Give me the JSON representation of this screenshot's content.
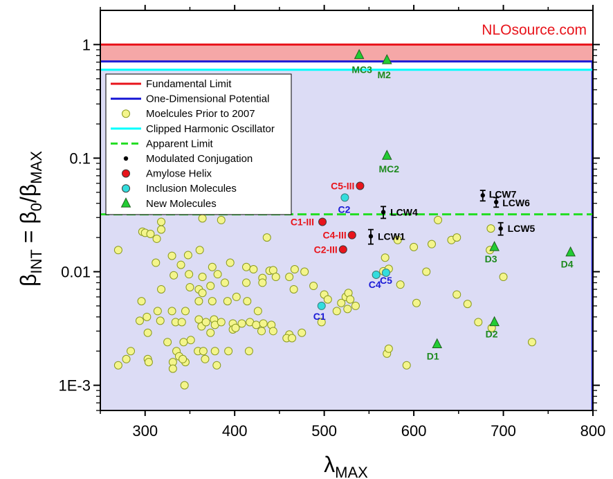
{
  "watermark": "NLOsource.com",
  "chart_data": {
    "type": "scatter",
    "xlabel": "λ",
    "xlabel_sub": "MAX",
    "ylabel_parts": [
      "β",
      "INT",
      " = β",
      "0",
      "/β",
      "MAX"
    ],
    "xlim": [
      250,
      800
    ],
    "ylim": [
      0.0006,
      2
    ],
    "y_scale": "log",
    "x_ticks": [
      300,
      400,
      500,
      600,
      700,
      800
    ],
    "x_tick_labels": [
      "300",
      "400",
      "500",
      "600",
      "700",
      "800"
    ],
    "y_ticks": [
      0.001,
      0.01,
      0.1,
      1
    ],
    "y_tick_labels": [
      "1E-3",
      "0.01",
      "0.1",
      "1"
    ],
    "colors": {
      "fundamental": "#e8141b",
      "fundamental_fill": "#f5a7a7",
      "one_dimensional": "#1a1ad6",
      "clipped": "#00ffff",
      "apparent": "#22dd22",
      "prior": "#f4f58c",
      "prior_edge": "#8a9a1e",
      "amylose": "#e8141b",
      "inclusion": "#33dddd",
      "new": "#22cc33",
      "region_fill": "#dcdcf5",
      "label_red": "#e8141b",
      "label_blue": "#1a1ad6",
      "label_green": "#1e8a1e",
      "label_black": "#000000"
    },
    "bands": {
      "fundamental_limit": 1.0,
      "one_dimensional_limit": 0.71,
      "clipped_harmonic_oscillator": 0.6,
      "apparent_limit": 0.032,
      "region_right_edge_x": 800
    },
    "legend": [
      {
        "label": "Fundamental Limit",
        "marker": "line",
        "color": "#e8141b"
      },
      {
        "label": "One-Dimensional Potential",
        "marker": "line",
        "color": "#1a1ad6"
      },
      {
        "label": "Moelcules Prior to 2007",
        "marker": "circle",
        "color": "#f4f58c"
      },
      {
        "label": "Clipped Harmonic Oscillator",
        "marker": "line",
        "color": "#00ffff"
      },
      {
        "label": "Apparent Limit",
        "marker": "dash",
        "color": "#22dd22"
      },
      {
        "label": "Modulated Conjugation",
        "marker": "dot",
        "color": "#000000"
      },
      {
        "label": "Amylose Helix",
        "marker": "circle",
        "color": "#e8141b"
      },
      {
        "label": "Inclusion Molecules",
        "marker": "circle",
        "color": "#33dddd"
      },
      {
        "label": "New Molecules",
        "marker": "triangle",
        "color": "#22cc33"
      }
    ],
    "series": [
      {
        "name": "Moelcules Prior to 2007",
        "marker": "circle",
        "points": [
          [
            270,
            0.0155
          ],
          [
            297,
            0.0225
          ],
          [
            300,
            0.022
          ],
          [
            306,
            0.0215
          ],
          [
            313,
            0.0195
          ],
          [
            318,
            0.0235
          ],
          [
            318,
            0.0275
          ],
          [
            364,
            0.0295
          ],
          [
            385,
            0.0285
          ],
          [
            436,
            0.02
          ],
          [
            312,
            0.012
          ],
          [
            330,
            0.0138
          ],
          [
            340,
            0.0115
          ],
          [
            348,
            0.014
          ],
          [
            361,
            0.0155
          ],
          [
            332,
            0.0093
          ],
          [
            349,
            0.0095
          ],
          [
            364,
            0.009
          ],
          [
            375,
            0.011
          ],
          [
            381,
            0.0095
          ],
          [
            395,
            0.012
          ],
          [
            413,
            0.011
          ],
          [
            421,
            0.0105
          ],
          [
            431,
            0.0088
          ],
          [
            439,
            0.0102
          ],
          [
            443,
            0.0103
          ],
          [
            461,
            0.009
          ],
          [
            467,
            0.0105
          ],
          [
            478,
            0.01
          ],
          [
            431,
            0.008
          ],
          [
            446,
            0.009
          ],
          [
            488,
            0.0075
          ],
          [
            350,
            0.0073
          ],
          [
            360,
            0.007
          ],
          [
            373,
            0.0075
          ],
          [
            389,
            0.008
          ],
          [
            413,
            0.008
          ],
          [
            466,
            0.007
          ],
          [
            296,
            0.0055
          ],
          [
            314,
            0.0045
          ],
          [
            318,
            0.007
          ],
          [
            330,
            0.0045
          ],
          [
            345,
            0.0045
          ],
          [
            360,
            0.0055
          ],
          [
            364,
            0.0065
          ],
          [
            375,
            0.0055
          ],
          [
            392,
            0.0055
          ],
          [
            402,
            0.006
          ],
          [
            414,
            0.0055
          ],
          [
            426,
            0.0045
          ],
          [
            294,
            0.0037
          ],
          [
            302,
            0.004
          ],
          [
            317,
            0.0037
          ],
          [
            334,
            0.0036
          ],
          [
            341,
            0.0036
          ],
          [
            360,
            0.0038
          ],
          [
            363,
            0.0033
          ],
          [
            368,
            0.0036
          ],
          [
            377,
            0.0038
          ],
          [
            378,
            0.0034
          ],
          [
            385,
            0.0036
          ],
          [
            398,
            0.0035
          ],
          [
            408,
            0.0035
          ],
          [
            417,
            0.0036
          ],
          [
            424,
            0.0034
          ],
          [
            432,
            0.0035
          ],
          [
            441,
            0.0034
          ],
          [
            303,
            0.0029
          ],
          [
            343,
            0.0024
          ],
          [
            351,
            0.0025
          ],
          [
            373,
            0.0029
          ],
          [
            398,
            0.0031
          ],
          [
            401,
            0.0032
          ],
          [
            430,
            0.003
          ],
          [
            443,
            0.003
          ],
          [
            461,
            0.0028
          ],
          [
            475,
            0.0029
          ],
          [
            325,
            0.0024
          ],
          [
            335,
            0.002
          ],
          [
            284,
            0.002
          ],
          [
            359,
            0.002
          ],
          [
            365,
            0.002
          ],
          [
            378,
            0.002
          ],
          [
            393,
            0.002
          ],
          [
            416,
            0.002
          ],
          [
            279,
            0.0017
          ],
          [
            303,
            0.0017
          ],
          [
            304,
            0.0016
          ],
          [
            331,
            0.0016
          ],
          [
            338,
            0.0018
          ],
          [
            345,
            0.0016
          ],
          [
            367,
            0.0017
          ],
          [
            380,
            0.0015
          ],
          [
            342,
            0.0017
          ],
          [
            270,
            0.0015
          ],
          [
            331,
            0.0014
          ],
          [
            344,
            0.001
          ],
          [
            458,
            0.0026
          ],
          [
            464,
            0.0026
          ],
          [
            497,
            0.0036
          ],
          [
            500,
            0.0063
          ],
          [
            504,
            0.0057
          ],
          [
            514,
            0.0045
          ],
          [
            519,
            0.0053
          ],
          [
            524,
            0.006
          ],
          [
            527,
            0.0065
          ],
          [
            529,
            0.0057
          ],
          [
            535,
            0.005
          ],
          [
            526,
            0.0047
          ],
          [
            558,
            0.0094
          ],
          [
            566,
            0.0101
          ],
          [
            568,
            0.0133
          ],
          [
            572,
            0.0106
          ],
          [
            582,
            0.019
          ],
          [
            585,
            0.0077
          ],
          [
            600,
            0.0165
          ],
          [
            603,
            0.0053
          ],
          [
            614,
            0.01
          ],
          [
            620,
            0.0175
          ],
          [
            627,
            0.0285
          ],
          [
            642,
            0.019
          ],
          [
            648,
            0.02
          ],
          [
            648,
            0.0063
          ],
          [
            660,
            0.0052
          ],
          [
            672,
            0.0036
          ],
          [
            685,
            0.0155
          ],
          [
            686,
            0.024
          ],
          [
            687,
            0.0032
          ],
          [
            700,
            0.009
          ],
          [
            732,
            0.0024
          ],
          [
            570,
            0.0019
          ],
          [
            572,
            0.0021
          ],
          [
            592,
            0.0015
          ]
        ]
      },
      {
        "name": "Amylose Helix",
        "marker": "circle",
        "points": [
          {
            "x": 498,
            "y": 0.0275,
            "label": "C1-III"
          },
          {
            "x": 531,
            "y": 0.021,
            "label": "C4-III"
          },
          {
            "x": 521,
            "y": 0.0157,
            "label": "C2-III"
          },
          {
            "x": 540,
            "y": 0.057,
            "label": "C5-III"
          }
        ]
      },
      {
        "name": "Inclusion Molecules",
        "marker": "circle",
        "points": [
          {
            "x": 497,
            "y": 0.005,
            "label": "C1"
          },
          {
            "x": 523,
            "y": 0.045,
            "label": "C2"
          },
          {
            "x": 558,
            "y": 0.0094,
            "label": "C4"
          },
          {
            "x": 569,
            "y": 0.0098,
            "label": "C5"
          }
        ]
      },
      {
        "name": "Modulated Conjugation",
        "marker": "errorbar",
        "points": [
          {
            "x": 552,
            "y": 0.0205,
            "err": 0.003,
            "label": "LCW1"
          },
          {
            "x": 566,
            "y": 0.0335,
            "err": 0.004,
            "label": "LCW4"
          },
          {
            "x": 697,
            "y": 0.024,
            "err": 0.003,
            "label": "LCW5"
          },
          {
            "x": 677,
            "y": 0.047,
            "err": 0.005,
            "label": "LCW7"
          },
          {
            "x": 692,
            "y": 0.041,
            "err": 0.004,
            "label": "LCW6"
          }
        ]
      },
      {
        "name": "New Molecules",
        "marker": "triangle",
        "points": [
          {
            "x": 539,
            "y": 0.81,
            "label": "MC3"
          },
          {
            "x": 570,
            "y": 0.73,
            "label": "M2"
          },
          {
            "x": 570,
            "y": 0.105,
            "label": "MC2"
          },
          {
            "x": 690,
            "y": 0.0165,
            "label": "D3"
          },
          {
            "x": 775,
            "y": 0.0148,
            "label": "D4"
          },
          {
            "x": 690,
            "y": 0.0036,
            "label": "D2"
          },
          {
            "x": 626,
            "y": 0.0023,
            "label": "D1"
          }
        ]
      }
    ]
  }
}
